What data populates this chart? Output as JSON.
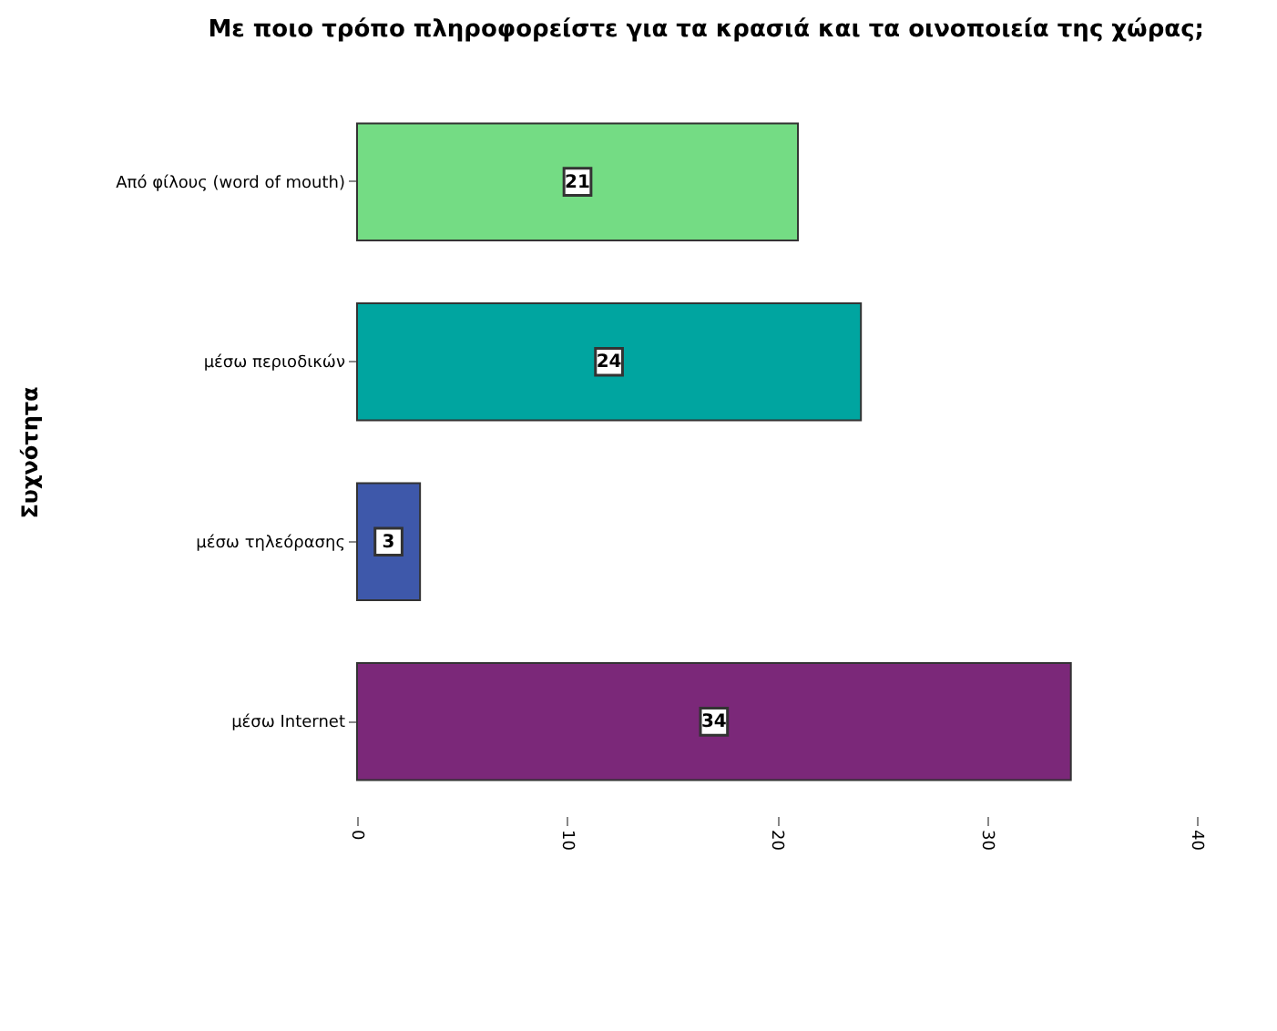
{
  "chart_data": {
    "type": "bar",
    "orientation": "horizontal",
    "title": "Με ποιο τρόπο πληροφορείστε για τα κρασιά και τα οινοποιεία της χώρας;",
    "ylabel": "Συχνότητα",
    "categories": [
      "Από φίλους (word of mouth)",
      "μέσω περιοδικών",
      "μέσω τηλεόρασης",
      "μέσω Internet"
    ],
    "values": [
      21,
      24,
      3,
      34
    ],
    "colors": [
      "#74dc84",
      "#00a5a0",
      "#3e58aa",
      "#7b2879"
    ],
    "xlim": [
      0,
      40
    ],
    "xticks": [
      0,
      10,
      20,
      30,
      40
    ],
    "data_labels": true,
    "grid": false
  }
}
